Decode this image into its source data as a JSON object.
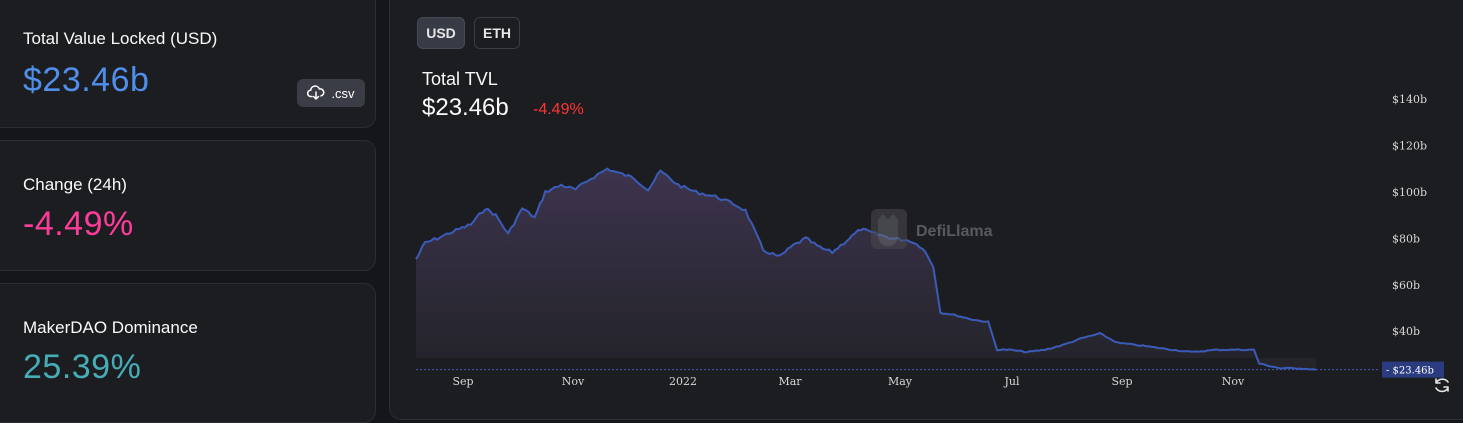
{
  "cards": {
    "tvl": {
      "title": "Total Value Locked (USD)",
      "value": "$23.46b",
      "color": "#4f8fea",
      "csv_label": ".csv"
    },
    "change": {
      "title": "Change (24h)",
      "value": "-4.49%",
      "color": "#fd3c99"
    },
    "dominance": {
      "title": "MakerDAO Dominance",
      "value": "25.39%",
      "color": "#46acb7"
    }
  },
  "toggles": {
    "usd": "USD",
    "eth": "ETH"
  },
  "header": {
    "title": "Total TVL",
    "value": "$23.46b",
    "change": "-4.49%",
    "change_color": "#ff3333"
  },
  "watermark": "DefiLlama",
  "chart_data": {
    "type": "area",
    "x_ticks": [
      "Sep",
      "Nov",
      "2022",
      "Mar",
      "May",
      "Jul",
      "Sep",
      "Nov"
    ],
    "y_ticks": [
      "$40b",
      "$60b",
      "$80b",
      "$100b",
      "$120b",
      "$140b"
    ],
    "ylim": [
      25,
      150
    ],
    "current_label": "$23.46b",
    "line_color": "#3b5bb8",
    "series": [
      {
        "points": [
          [
            "2021-07-20",
            71
          ],
          [
            "2021-07-25",
            78
          ],
          [
            "2021-08-01",
            80
          ],
          [
            "2021-08-10",
            83
          ],
          [
            "2021-08-20",
            86
          ],
          [
            "2021-08-28",
            93
          ],
          [
            "2021-09-03",
            90
          ],
          [
            "2021-09-10",
            82
          ],
          [
            "2021-09-18",
            93
          ],
          [
            "2021-09-25",
            89
          ],
          [
            "2021-10-01",
            100
          ],
          [
            "2021-10-10",
            103
          ],
          [
            "2021-10-18",
            101
          ],
          [
            "2021-10-25",
            105
          ],
          [
            "2021-11-05",
            110
          ],
          [
            "2021-11-12",
            108
          ],
          [
            "2021-11-20",
            106
          ],
          [
            "2021-11-28",
            101
          ],
          [
            "2021-12-05",
            109
          ],
          [
            "2021-12-15",
            103
          ],
          [
            "2021-12-25",
            100
          ],
          [
            "2022-01-05",
            98
          ],
          [
            "2022-01-15",
            95
          ],
          [
            "2022-01-22",
            92
          ],
          [
            "2022-02-01",
            75
          ],
          [
            "2022-02-10",
            72
          ],
          [
            "2022-02-18",
            77
          ],
          [
            "2022-02-25",
            80
          ],
          [
            "2022-03-05",
            76
          ],
          [
            "2022-03-12",
            74
          ],
          [
            "2022-03-20",
            79
          ],
          [
            "2022-03-28",
            84
          ],
          [
            "2022-04-05",
            82
          ],
          [
            "2022-04-15",
            80
          ],
          [
            "2022-04-25",
            79
          ],
          [
            "2022-05-02",
            76
          ],
          [
            "2022-05-08",
            68
          ],
          [
            "2022-05-12",
            48
          ],
          [
            "2022-05-20",
            47
          ],
          [
            "2022-05-30",
            45
          ],
          [
            "2022-06-08",
            44
          ],
          [
            "2022-06-13",
            32
          ],
          [
            "2022-06-20",
            32
          ],
          [
            "2022-06-30",
            31
          ],
          [
            "2022-07-10",
            32
          ],
          [
            "2022-07-20",
            34
          ],
          [
            "2022-07-31",
            37
          ],
          [
            "2022-08-10",
            39
          ],
          [
            "2022-08-20",
            35
          ],
          [
            "2022-08-31",
            34
          ],
          [
            "2022-09-10",
            33
          ],
          [
            "2022-09-20",
            32
          ],
          [
            "2022-10-01",
            31
          ],
          [
            "2022-10-15",
            32
          ],
          [
            "2022-10-25",
            32
          ],
          [
            "2022-11-05",
            32
          ],
          [
            "2022-11-08",
            26
          ],
          [
            "2022-11-20",
            24
          ],
          [
            "2022-12-01",
            24
          ],
          [
            "2022-12-10",
            23.46
          ]
        ]
      }
    ]
  }
}
